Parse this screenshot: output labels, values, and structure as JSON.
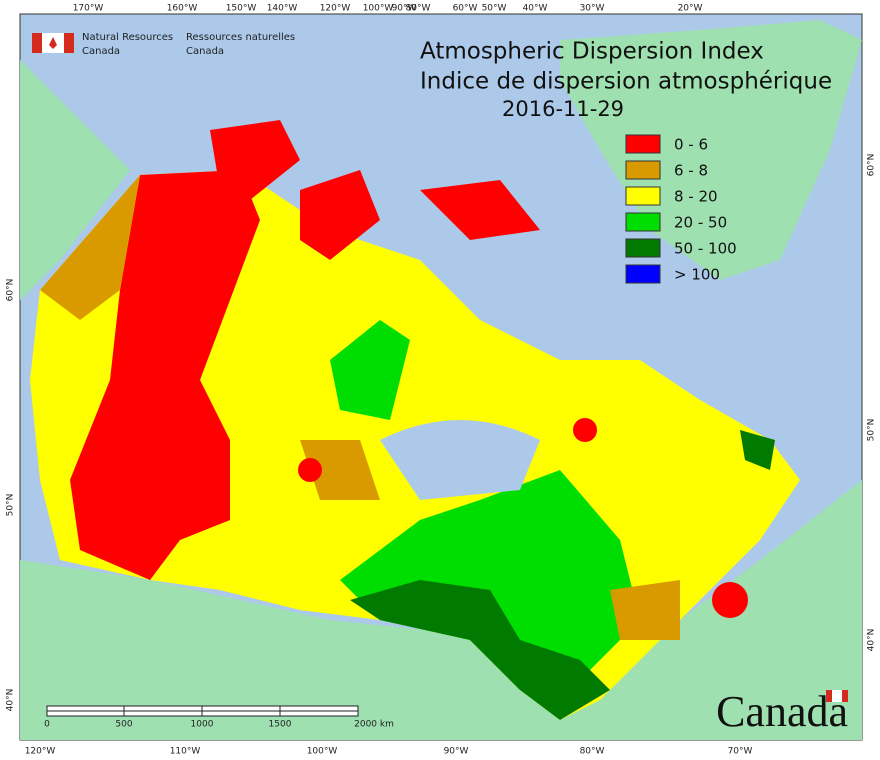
{
  "header": {
    "agency_en": [
      "Natural Resources",
      "Canada"
    ],
    "agency_fr": [
      "Ressources naturelles",
      "Canada"
    ]
  },
  "title": {
    "en": "Atmospheric Dispersion Index",
    "fr": "Indice de dispersion atmosphérique",
    "date": "2016-11-29"
  },
  "legend": [
    {
      "label": "0 - 6",
      "color": "#ff0000"
    },
    {
      "label": "6 - 8",
      "color": "#d99a00"
    },
    {
      "label": "8 - 20",
      "color": "#ffff00"
    },
    {
      "label": "20 - 50",
      "color": "#00dd00"
    },
    {
      "label": "50 - 100",
      "color": "#007a00"
    },
    {
      "label": "> 100",
      "color": "#0000ff"
    }
  ],
  "top_labels": [
    "170°W",
    "160°W",
    "150°W",
    "140°W",
    "120°W",
    "100°W",
    "90°W",
    "80°W",
    "60°W",
    "50°W",
    "40°W",
    "30°W",
    "20°W"
  ],
  "bottom_labels": [
    "120°W",
    "110°W",
    "100°W",
    "90°W",
    "80°W",
    "70°W"
  ],
  "left_labels": [
    "60°N",
    "50°N",
    "40°N"
  ],
  "right_labels": [
    "60°N",
    "50°N",
    "40°N"
  ],
  "scale_bar": [
    "0",
    "500",
    "1000",
    "1500",
    "2000 km"
  ],
  "wordmark": "Canada"
}
